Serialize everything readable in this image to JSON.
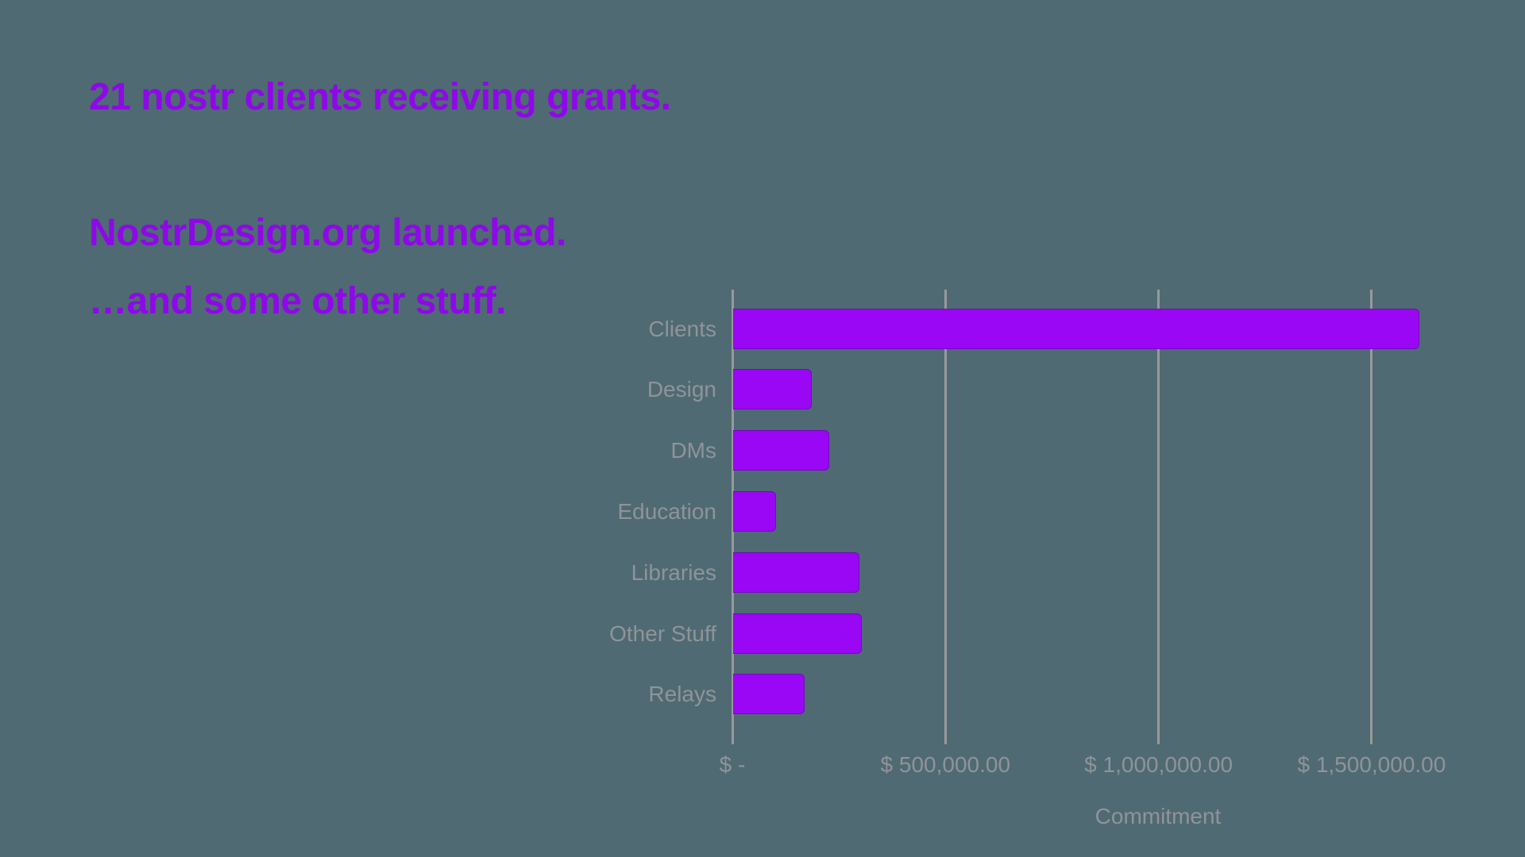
{
  "slide": {
    "headlines": [
      {
        "text": "21 nostr clients receiving grants."
      },
      {
        "text": "NostrDesign.org launched."
      },
      {
        "text": "…and some other stuff."
      }
    ]
  },
  "colors": {
    "background": "#4F6A73",
    "headline_purple": "#8E08E8",
    "bar_purple": "#9A07F5",
    "bar_border": "#6F0BB8",
    "axis_line_gray": "#98999B",
    "label_gray": "#8F9499"
  },
  "chart_data": {
    "type": "bar",
    "orientation": "horizontal",
    "title": "",
    "xlabel": "Commitment",
    "ylabel": "",
    "categories": [
      "Clients",
      "Design",
      "DMs",
      "Education",
      "Libraries",
      "Other Stuff",
      "Relays"
    ],
    "values": [
      1610000,
      185000,
      225000,
      100000,
      297000,
      301000,
      168000
    ],
    "xlim": [
      0,
      1620000
    ],
    "grid": "vertical gridlines at x ticks",
    "legend": "none",
    "x_ticks": [
      {
        "label": "$ -",
        "value": 0
      },
      {
        "label": "$ 500,000.00",
        "value": 500000
      },
      {
        "label": "$ 1,000,000.00",
        "value": 1000000
      },
      {
        "label": "$ 1,500,000.00",
        "value": 1500000
      }
    ]
  }
}
